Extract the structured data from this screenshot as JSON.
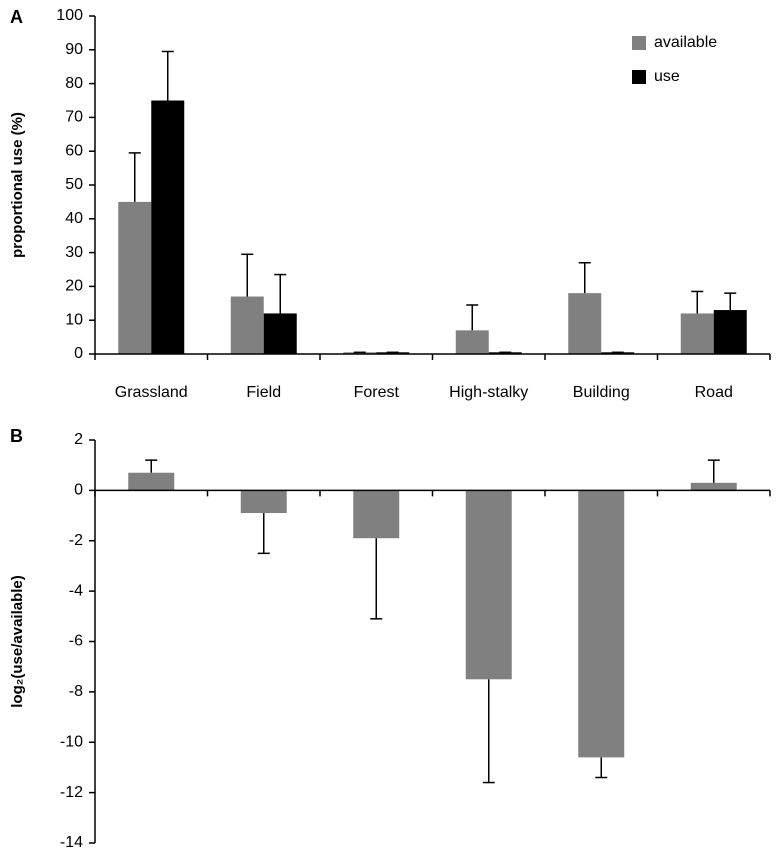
{
  "chart_data": [
    {
      "type": "bar",
      "label": "A",
      "ylabel": "proportional use (%)",
      "categories": [
        "Grassland",
        "Field",
        "Forest",
        "High-stalky",
        "Building",
        "Road"
      ],
      "series": [
        {
          "name": "available",
          "color": "#808080",
          "values": [
            45,
            17,
            0.5,
            7,
            18,
            12
          ],
          "errors": [
            14.5,
            12.5,
            0,
            7.5,
            9,
            6.5
          ]
        },
        {
          "name": "use",
          "color": "#000000",
          "values": [
            75,
            12,
            0.5,
            0.5,
            0.5,
            13
          ],
          "errors": [
            14.5,
            11.5,
            0,
            0,
            0,
            5
          ]
        }
      ],
      "ylim": [
        0,
        100
      ],
      "yticks": [
        0,
        10,
        20,
        30,
        40,
        50,
        60,
        70,
        80,
        90,
        100
      ],
      "legend": "top-right"
    },
    {
      "type": "bar",
      "label": "B",
      "ylabel": "log₂(use/available)",
      "series": [
        {
          "color": "#808080",
          "values": [
            0.7,
            -0.9,
            -1.9,
            -7.5,
            -10.6,
            0.3
          ],
          "errors": [
            0.5,
            1.6,
            3.2,
            4.1,
            0.8,
            0.9
          ]
        }
      ],
      "ylim": [
        -14,
        2
      ],
      "yticks": [
        -14,
        -12,
        -10,
        -8,
        -6,
        -4,
        -2,
        0,
        2
      ]
    }
  ]
}
